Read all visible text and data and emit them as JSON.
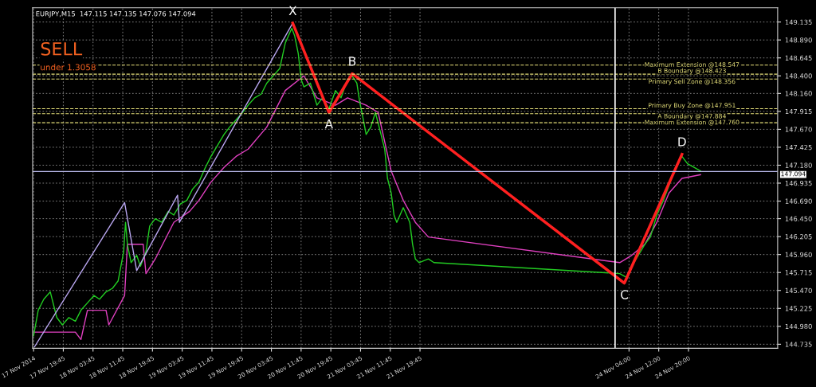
{
  "chart_data": {
    "type": "line",
    "title": "EURJPY,M15  147.115 147.135 147.076 147.094",
    "xlim": [
      "2014-11-17T11:30",
      "2014-11-25T20:00"
    ],
    "ylim": [
      144.68,
      149.33
    ],
    "xticks": [
      {
        "value": "2014-11-17T11:45",
        "label": "17 Nov 2014"
      },
      {
        "value": "2014-11-17T19:45",
        "label": "17 Nov 19:45"
      },
      {
        "value": "2014-11-18T03:45",
        "label": "18 Nov 03:45"
      },
      {
        "value": "2014-11-18T11:45",
        "label": "18 Nov 11:45"
      },
      {
        "value": "2014-11-18T19:45",
        "label": "18 Nov 19:45"
      },
      {
        "value": "2014-11-19T03:45",
        "label": "19 Nov 03:45"
      },
      {
        "value": "2014-11-19T11:45",
        "label": "19 Nov 11:45"
      },
      {
        "value": "2014-11-19T19:45",
        "label": "19 Nov 19:45"
      },
      {
        "value": "2014-11-20T03:45",
        "label": "20 Nov 03:45"
      },
      {
        "value": "2014-11-20T11:45",
        "label": "20 Nov 11:45"
      },
      {
        "value": "2014-11-20T19:45",
        "label": "20 Nov 19:45"
      },
      {
        "value": "2014-11-21T03:45",
        "label": "21 Nov 03:45"
      },
      {
        "value": "2014-11-21T11:45",
        "label": "21 Nov 11:45"
      },
      {
        "value": "2014-11-21T19:45",
        "label": "21 Nov 19:45"
      },
      {
        "value": "2014-11-24T04:00",
        "label": "24 Nov 04:00"
      },
      {
        "value": "2014-11-24T12:00",
        "label": "24 Nov 12:00"
      },
      {
        "value": "2014-11-24T20:00",
        "label": "24 Nov 20:00"
      }
    ],
    "yticks": [
      149.135,
      {
        "value": 148.89,
        "label": "148.890"
      },
      148.645,
      {
        "value": 148.4,
        "label": "148.400"
      },
      {
        "value": 148.16,
        "label": "148.160"
      },
      147.915,
      {
        "value": 147.67,
        "label": "147.670"
      },
      147.425,
      {
        "value": 147.18,
        "label": "147.180"
      },
      146.935,
      {
        "value": 146.69,
        "label": "146.690"
      },
      {
        "value": 146.45,
        "label": "146.450"
      },
      146.205,
      {
        "value": 145.96,
        "label": "145.960"
      },
      145.715,
      {
        "value": 145.47,
        "label": "145.470"
      },
      145.225,
      {
        "value": 144.98,
        "label": "144.980"
      },
      144.735
    ],
    "grid": true,
    "marker": "none",
    "line_style": "solid",
    "series": [
      {
        "color": "#e040c0",
        "x": [
          "2014-11-17T11:45",
          "2014-11-17T23:00",
          "2014-11-18T00:30",
          "2014-11-18T02:15",
          "2014-11-18T07:15",
          "2014-11-18T08:00",
          "2014-11-18T12:15",
          "2014-11-18T13:00",
          "2014-11-18T17:15",
          "2014-11-18T18:00",
          "2014-11-18T20:30",
          "2014-11-19T01:30",
          "2014-11-19T05:45",
          "2014-11-19T08:15",
          "2014-11-19T11:30",
          "2014-11-19T15:00",
          "2014-11-19T18:15",
          "2014-11-19T21:30",
          "2014-11-20T02:30",
          "2014-11-20T07:30",
          "2014-11-20T12:30",
          "2014-11-20T16:00",
          "2014-11-20T21:00",
          "2014-11-21T00:15",
          "2014-11-21T05:15",
          "2014-11-21T08:30",
          "2014-11-21T12:00",
          "2014-11-21T15:15",
          "2014-11-21T18:30",
          "2014-11-21T22:00",
          "2014-11-24T01:30",
          "2014-11-24T04:45",
          "2014-11-24T08:15",
          "2014-11-24T11:30",
          "2014-11-24T14:45",
          "2014-11-24T18:15",
          "2014-11-24T23:15"
        ],
        "values": [
          144.9,
          144.9,
          144.8,
          145.2,
          145.2,
          145.0,
          145.4,
          146.1,
          146.1,
          145.7,
          145.9,
          146.4,
          146.55,
          146.7,
          146.95,
          147.15,
          147.3,
          147.4,
          147.7,
          148.2,
          148.4,
          148.1,
          148.0,
          148.1,
          148.0,
          147.9,
          147.1,
          146.7,
          146.4,
          146.2,
          145.85,
          145.95,
          146.1,
          146.4,
          146.8,
          147.0,
          147.05
        ]
      },
      {
        "color": "#22cc22",
        "x": [
          "2014-11-17T11:45",
          "2014-11-17T13:00",
          "2014-11-17T14:30",
          "2014-11-17T16:15",
          "2014-11-17T18:00",
          "2014-11-17T19:30",
          "2014-11-17T21:15",
          "2014-11-17T23:00",
          "2014-11-18T00:30",
          "2014-11-18T02:15",
          "2014-11-18T04:00",
          "2014-11-18T05:30",
          "2014-11-18T07:15",
          "2014-11-18T09:00",
          "2014-11-18T10:30",
          "2014-11-18T12:00",
          "2014-11-18T12:30",
          "2014-11-18T13:00",
          "2014-11-18T14:00",
          "2014-11-18T15:30",
          "2014-11-18T16:30",
          "2014-11-18T18:00",
          "2014-11-18T19:00",
          "2014-11-18T20:30",
          "2014-11-18T22:15",
          "2014-11-19T00:00",
          "2014-11-19T01:30",
          "2014-11-19T03:15",
          "2014-11-19T05:00",
          "2014-11-19T06:30",
          "2014-11-19T08:15",
          "2014-11-19T10:00",
          "2014-11-19T11:30",
          "2014-11-19T13:15",
          "2014-11-19T15:00",
          "2014-11-19T16:30",
          "2014-11-19T18:15",
          "2014-11-19T20:00",
          "2014-11-19T21:30",
          "2014-11-19T23:15",
          "2014-11-20T01:00",
          "2014-11-20T02:30",
          "2014-11-20T04:15",
          "2014-11-20T06:00",
          "2014-11-20T07:30",
          "2014-11-20T09:15",
          "2014-11-20T10:00",
          "2014-11-20T11:00",
          "2014-11-20T11:45",
          "2014-11-20T12:30",
          "2014-11-20T14:15",
          "2014-11-20T16:00",
          "2014-11-20T17:30",
          "2014-11-20T19:15",
          "2014-11-20T21:00",
          "2014-11-20T22:30",
          "2014-11-21T00:15",
          "2014-11-21T01:30",
          "2014-11-21T02:45",
          "2014-11-21T03:30",
          "2014-11-21T04:30",
          "2014-11-21T05:15",
          "2014-11-21T06:30",
          "2014-11-21T07:45",
          "2014-11-21T09:30",
          "2014-11-21T10:15",
          "2014-11-21T11:00",
          "2014-11-21T12:00",
          "2014-11-21T12:45",
          "2014-11-21T13:30",
          "2014-11-21T15:15",
          "2014-11-21T17:00",
          "2014-11-21T17:45",
          "2014-11-21T18:30",
          "2014-11-21T19:30",
          "2014-11-21T22:00",
          "2014-11-21T23:30",
          "2014-11-24T01:30",
          "2014-11-24T03:15",
          "2014-11-24T04:45",
          "2014-11-24T06:30",
          "2014-11-24T08:15",
          "2014-11-24T09:45",
          "2014-11-24T11:30",
          "2014-11-24T13:15",
          "2014-11-24T14:45",
          "2014-11-24T16:30",
          "2014-11-24T18:15",
          "2014-11-24T19:45",
          "2014-11-24T21:30",
          "2014-11-24T23:15"
        ],
        "values": [
          144.85,
          145.2,
          145.35,
          145.45,
          145.1,
          145.0,
          145.1,
          145.05,
          145.2,
          145.3,
          145.4,
          145.35,
          145.45,
          145.5,
          145.6,
          146.0,
          146.4,
          146.1,
          145.85,
          145.95,
          145.8,
          146.0,
          146.35,
          146.45,
          146.4,
          146.55,
          146.5,
          146.65,
          146.7,
          146.85,
          146.95,
          147.15,
          147.3,
          147.45,
          147.6,
          147.7,
          147.8,
          147.9,
          148.0,
          148.1,
          148.15,
          148.3,
          148.4,
          148.5,
          148.85,
          149.05,
          148.95,
          148.7,
          148.35,
          148.25,
          148.3,
          148.0,
          148.1,
          147.95,
          148.2,
          148.1,
          148.35,
          148.4,
          148.3,
          148.05,
          147.8,
          147.6,
          147.7,
          147.9,
          147.55,
          147.4,
          147.0,
          146.8,
          146.5,
          146.4,
          146.6,
          146.4,
          146.1,
          145.9,
          145.85,
          145.9,
          145.85,
          145.7,
          145.65,
          145.8,
          145.95,
          146.1,
          146.2,
          146.5,
          146.7,
          146.9,
          147.15,
          147.3,
          147.2,
          147.15,
          147.1
        ]
      },
      {
        "color": "#b9a6f0",
        "x": [
          "2014-11-17T12:00",
          "2014-11-18T12:15",
          "2014-11-18T15:30",
          "2014-11-19T02:30",
          "2014-11-19T03:00",
          "2014-11-20T09:30"
        ],
        "values": [
          144.7,
          146.67,
          145.74,
          146.77,
          146.4,
          149.12
        ]
      },
      {
        "color": "#ff2020",
        "x": [
          "2014-11-20T09:30",
          "2014-11-20T19:15",
          "2014-11-21T01:30",
          "2014-11-24T02:45",
          "2014-11-24T18:15"
        ],
        "values": [
          149.12,
          147.9,
          148.43,
          145.57,
          147.33
        ]
      }
    ],
    "ref_lines": [
      {
        "axis": "y",
        "value": 148.547,
        "label": "Maximum Extension @148.547",
        "color": "#e6e07a",
        "line_style": "dashed"
      },
      {
        "axis": "y",
        "value": 148.423,
        "label": "B Boundary @148.423",
        "color": "#e6e07a",
        "line_style": "dashed"
      },
      {
        "axis": "y",
        "value": 148.356,
        "label": "Primary Sell Zone @148.356",
        "color": "#e6e07a",
        "line_style": "dashed"
      },
      {
        "axis": "y",
        "value": 147.951,
        "label": "Primary Buy Zone @147.951",
        "color": "#e6e07a",
        "line_style": "dashed"
      },
      {
        "axis": "y",
        "value": 147.884,
        "label": "A Boundary @147.884",
        "color": "#e6e07a",
        "line_style": "dashed"
      },
      {
        "axis": "y",
        "value": 147.76,
        "label": "Maximum Extension @147.760",
        "color": "#e6e07a",
        "line_style": "dashed"
      },
      {
        "axis": "y",
        "value": 147.094,
        "label": "147.094",
        "color": "#b8b8e8",
        "line_style": "solid"
      },
      {
        "axis": "x",
        "value": "2014-11-24T00:15",
        "color": "#ffffff",
        "line_style": "solid"
      }
    ],
    "annotations": [
      {
        "text": "X",
        "x": "2014-11-20T09:30",
        "y": 149.12
      },
      {
        "text": "A",
        "x": "2014-11-20T19:15",
        "y": 147.9
      },
      {
        "text": "B",
        "x": "2014-11-21T01:30",
        "y": 148.43
      },
      {
        "text": "C",
        "x": "2014-11-24T02:45",
        "y": 145.57
      },
      {
        "text": "D",
        "x": "2014-11-24T18:15",
        "y": 147.33
      },
      "SELL",
      "under 1.3058"
    ]
  }
}
